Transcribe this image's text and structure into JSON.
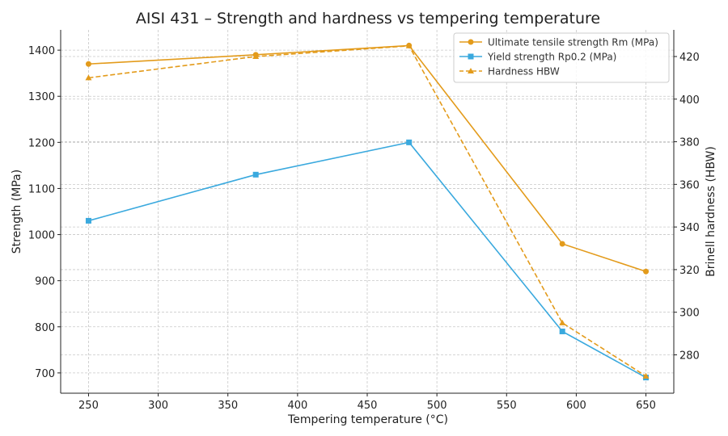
{
  "chart_data": {
    "type": "line",
    "title": "AISI 431 – Strength and hardness vs tempering temperature",
    "xlabel": "Tempering temperature (°C)",
    "ylabel": "Strength (MPa)",
    "y2label": "Brinell hardness (HBW)",
    "xlim": [
      230,
      670
    ],
    "ylim": [
      656,
      1444
    ],
    "y2lim": [
      262,
      432.5
    ],
    "xticks": [
      250,
      300,
      350,
      400,
      450,
      500,
      550,
      600,
      650
    ],
    "yticks": [
      700,
      800,
      900,
      1000,
      1100,
      1200,
      1300,
      1400
    ],
    "y2ticks": [
      280,
      300,
      320,
      340,
      360,
      380,
      400,
      420
    ],
    "grid": true,
    "legend_position": "top-right",
    "x": [
      250,
      370,
      480,
      590,
      650
    ],
    "series": [
      {
        "name": "Ultimate tensile strength Rm (MPa)",
        "axis": "left",
        "values": [
          1370,
          1390,
          1410,
          980,
          920
        ],
        "color": "#e39b1b",
        "marker": "circle",
        "dash": "solid"
      },
      {
        "name": "Yield strength Rp0.2 (MPa)",
        "axis": "left",
        "values": [
          1030,
          1130,
          1200,
          790,
          690
        ],
        "color": "#3aa9de",
        "marker": "square",
        "dash": "solid"
      },
      {
        "name": "Hardness HBW",
        "axis": "right",
        "values": [
          410,
          420,
          425,
          295,
          270
        ],
        "color": "#e39b1b",
        "marker": "triangle",
        "dash": "dashed"
      }
    ]
  }
}
